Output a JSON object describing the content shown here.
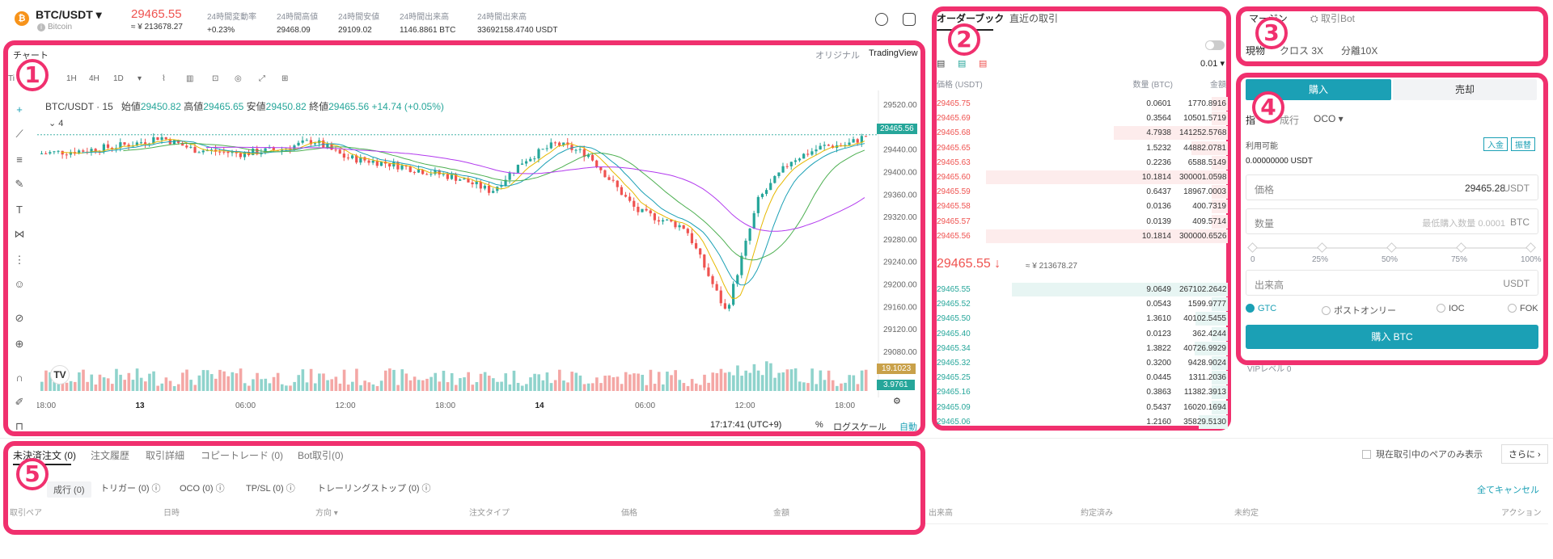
{
  "header": {
    "pair": "BTC/USDT",
    "pair_sub": "Bitcoin",
    "last_price": "29465.55",
    "last_price_jpy": "≈ ¥ 213678.27",
    "stats": [
      {
        "label": "24時間変動率",
        "value": "+0.23%"
      },
      {
        "label": "24時間高値",
        "value": "29468.09"
      },
      {
        "label": "24時間安値",
        "value": "29109.02"
      },
      {
        "label": "24時間出来高",
        "value": "1146.8861 BTC"
      },
      {
        "label": "24時間出来高",
        "value": "33692158.4740 USDT"
      }
    ]
  },
  "chart": {
    "title": "チャート",
    "toggle_original": "オリジナル",
    "toggle_tv": "TradingView",
    "intervals": [
      "Ti",
      "1H",
      "4H",
      "1D"
    ],
    "symbol": "BTC/USDT · 15",
    "ohlc": {
      "open_label": "始値",
      "open": "29450.82",
      "high_label": "高値",
      "high": "29465.65",
      "low_label": "安値",
      "low": "29450.82",
      "close_label": "終値",
      "close": "29465.56",
      "change": "+14.74 (+0.05%)"
    },
    "indicator_count": "4",
    "price_ticks": [
      "29520.00",
      "29480.00",
      "29440.00",
      "29400.00",
      "29360.00",
      "29320.00",
      "29280.00",
      "29240.00",
      "29200.00",
      "29160.00",
      "29120.00",
      "29080.00"
    ],
    "current_price_badge": "29465.56",
    "volume_badge_1": "19.1023",
    "volume_badge_2": "3.9761",
    "time_ticks": [
      "18:00",
      "13",
      "06:00",
      "12:00",
      "18:00",
      "14",
      "06:00",
      "12:00",
      "18:00"
    ],
    "clock": "17:17:41 (UTC+9)",
    "percent": "%",
    "log_scale": "ログスケール",
    "auto": "自動"
  },
  "orderbook": {
    "tab_book": "オーダーブック",
    "tab_trades": "直近の取引",
    "precision": "0.01",
    "col_price": "価格 (USDT)",
    "col_amount": "数量 (BTC)",
    "col_total": "金額",
    "asks": [
      {
        "price": "29465.75",
        "amount": "0.0601",
        "total": "1770.8916"
      },
      {
        "price": "29465.69",
        "amount": "0.3564",
        "total": "10501.5719"
      },
      {
        "price": "29465.68",
        "amount": "4.7938",
        "total": "141252.5768"
      },
      {
        "price": "29465.65",
        "amount": "1.5232",
        "total": "44882.0781"
      },
      {
        "price": "29465.63",
        "amount": "0.2236",
        "total": "6588.5149"
      },
      {
        "price": "29465.60",
        "amount": "10.1814",
        "total": "300001.0598"
      },
      {
        "price": "29465.59",
        "amount": "0.6437",
        "total": "18967.0003"
      },
      {
        "price": "29465.58",
        "amount": "0.0136",
        "total": "400.7319"
      },
      {
        "price": "29465.57",
        "amount": "0.0139",
        "total": "409.5714"
      },
      {
        "price": "29465.56",
        "amount": "10.1814",
        "total": "300000.6526"
      }
    ],
    "mid_price": "29465.55",
    "mid_jpy": "≈ ¥ 213678.27",
    "bids": [
      {
        "price": "29465.55",
        "amount": "9.0649",
        "total": "267102.2642"
      },
      {
        "price": "29465.52",
        "amount": "0.0543",
        "total": "1599.9777"
      },
      {
        "price": "29465.50",
        "amount": "1.3610",
        "total": "40102.5455"
      },
      {
        "price": "29465.40",
        "amount": "0.0123",
        "total": "362.4244"
      },
      {
        "price": "29465.34",
        "amount": "1.3822",
        "total": "40726.9929"
      },
      {
        "price": "29465.32",
        "amount": "0.3200",
        "total": "9428.9024"
      },
      {
        "price": "29465.25",
        "amount": "0.0445",
        "total": "1311.2036"
      },
      {
        "price": "29465.16",
        "amount": "0.3863",
        "total": "11382.3913"
      },
      {
        "price": "29465.09",
        "amount": "0.5437",
        "total": "16020.1694"
      },
      {
        "price": "29465.06",
        "amount": "1.2160",
        "total": "35829.5130"
      }
    ]
  },
  "margin": {
    "tab_margin": "マージン",
    "tab_bot": "取引Bot",
    "modes": [
      "現物",
      "クロス 3X",
      "分離10X"
    ]
  },
  "trade_form": {
    "buy": "購入",
    "sell": "売却",
    "order_types": [
      "指",
      "成行",
      "OCO"
    ],
    "available_label": "利用可能",
    "deposit": "入金",
    "transfer": "振替",
    "available_value": "0.00000000 USDT",
    "price_label": "価格",
    "price_value": "29465.28",
    "price_unit": "USDT",
    "qty_label": "数量",
    "qty_placeholder": "最低購入数量 0.0001",
    "qty_unit": "BTC",
    "slider_marks": [
      "0",
      "25%",
      "50%",
      "75%",
      "100%"
    ],
    "volume_label": "出来高",
    "volume_unit": "USDT",
    "tif": [
      "GTC",
      "ポストオンリー",
      "IOC",
      "FOK"
    ],
    "submit": "購入 BTC",
    "vip": "VIPレベル 0"
  },
  "orders": {
    "tabs": [
      "未決済注文 (0)",
      "注文履歴",
      "取引詳細",
      "コピートレード (0)",
      "Bot取引(0)"
    ],
    "show_current_pair": "現在取引中のペアのみ表示",
    "more": "さらに",
    "subtabs": [
      "成行 (0)",
      "トリガー (0)",
      "OCO (0)",
      "TP/SL (0)",
      "トレーリングストップ (0)"
    ],
    "cancel_all": "全てキャンセル",
    "columns": [
      "取引ペア",
      "日時",
      "方向",
      "注文タイプ",
      "価格",
      "金額",
      "出来高",
      "約定済み",
      "未約定",
      "アクション"
    ]
  },
  "annotations": [
    "1",
    "2",
    "3",
    "4",
    "5"
  ],
  "colors": {
    "highlight": "#f0306e",
    "accent": "#1ba0b5",
    "up": "#26a69a",
    "down": "#ef5350"
  }
}
